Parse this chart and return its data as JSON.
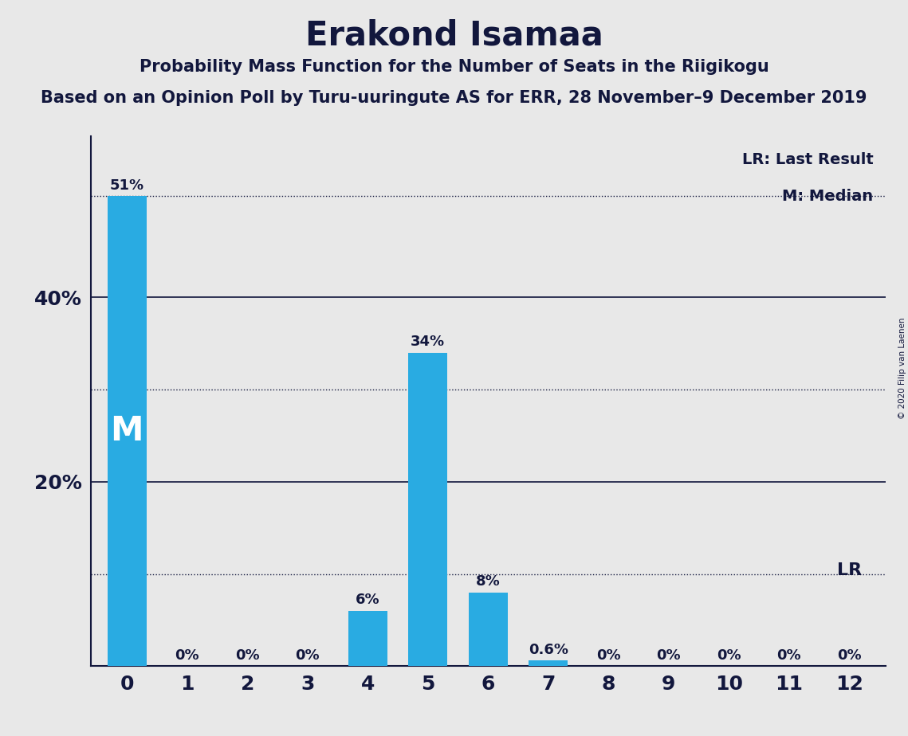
{
  "title": "Erakond Isamaa",
  "subtitle1": "Probability Mass Function for the Number of Seats in the Riigikogu",
  "subtitle2": "Based on an Opinion Poll by Turu-uuringute AS for ERR, 28 November–9 December 2019",
  "copyright": "© 2020 Filip van Laenen",
  "seats": [
    0,
    1,
    2,
    3,
    4,
    5,
    6,
    7,
    8,
    9,
    10,
    11,
    12
  ],
  "probabilities": [
    0.51,
    0.0,
    0.0,
    0.0,
    0.06,
    0.34,
    0.08,
    0.006,
    0.0,
    0.0,
    0.0,
    0.0,
    0.0
  ],
  "bar_color": "#29ABE2",
  "bar_labels": [
    "51%",
    "0%",
    "0%",
    "0%",
    "6%",
    "34%",
    "8%",
    "0.6%",
    "0%",
    "0%",
    "0%",
    "0%",
    "0%"
  ],
  "median_seat": 0,
  "lr_seat": 12,
  "background_color": "#E8E8E8",
  "text_color": "#12173D",
  "ylim": [
    0,
    0.575
  ],
  "yticks": [
    0.2,
    0.4
  ],
  "ytick_labels": [
    "20%",
    "40%"
  ],
  "solid_grid": [
    0.2,
    0.4
  ],
  "dotted_grid": [
    0.1,
    0.3,
    0.51
  ],
  "lr_label": "LR",
  "lr_description": "LR: Last Result",
  "median_description": "M: Median",
  "bar_width": 0.65
}
